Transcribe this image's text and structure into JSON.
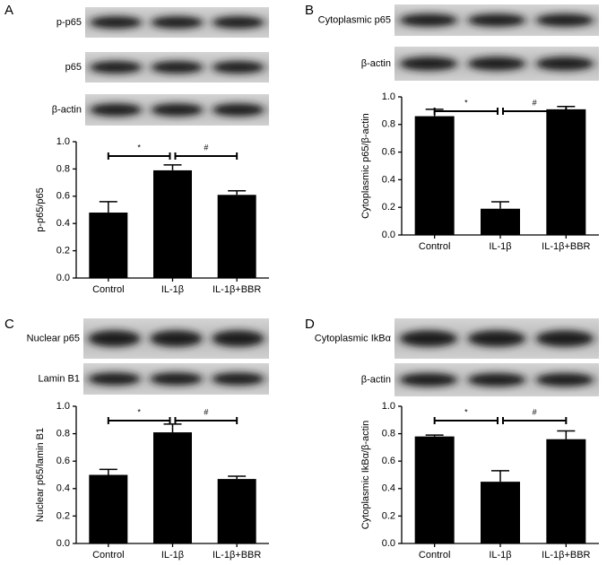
{
  "chart_data": [
    {
      "type": "bar",
      "panel": "A",
      "blot_labels": [
        "p-p65",
        "p65",
        "β-actin"
      ],
      "ylabel": "p-p65/p65",
      "categories": [
        "Control",
        "IL-1β",
        "IL-1β+BBR"
      ],
      "values": [
        0.48,
        0.79,
        0.61
      ],
      "errors": [
        0.08,
        0.04,
        0.03
      ],
      "color": "#000000",
      "ylim": [
        0,
        1
      ],
      "yticks": [
        {
          "value": 0,
          "label": "0.0"
        },
        {
          "value": 0.2,
          "label": "0.2"
        },
        {
          "value": 0.4,
          "label": "0.4"
        },
        {
          "value": 0.6,
          "label": "0.6"
        },
        {
          "value": 0.8,
          "label": "0.8"
        },
        {
          "value": 1,
          "label": "1.0"
        }
      ],
      "annotations": [
        "*",
        "#"
      ]
    },
    {
      "type": "bar",
      "panel": "B",
      "blot_labels": [
        "Cytoplasmic p65",
        "β-actin"
      ],
      "ylabel": "Cytoplasmic p65/β-actin",
      "categories": [
        "Control",
        "IL-1β",
        "IL-1β+BBR"
      ],
      "values": [
        0.86,
        0.19,
        0.91
      ],
      "errors": [
        0.05,
        0.05,
        0.02
      ],
      "color": "#000000",
      "ylim": [
        0,
        1
      ],
      "yticks": [
        {
          "value": 0,
          "label": "0.0"
        },
        {
          "value": 0.2,
          "label": "0.2"
        },
        {
          "value": 0.4,
          "label": "0.4"
        },
        {
          "value": 0.6,
          "label": "0.6"
        },
        {
          "value": 0.8,
          "label": "0.8"
        },
        {
          "value": 1,
          "label": "1.0"
        }
      ],
      "annotations": [
        "*",
        "#"
      ]
    },
    {
      "type": "bar",
      "panel": "C",
      "blot_labels": [
        "Nuclear p65",
        "Lamin B1"
      ],
      "ylabel": "Nuclear p65/lamin B1",
      "categories": [
        "Control",
        "IL-1β",
        "IL-1β+BBR"
      ],
      "values": [
        0.5,
        0.81,
        0.47
      ],
      "errors": [
        0.04,
        0.06,
        0.02
      ],
      "color": "#000000",
      "ylim": [
        0,
        1
      ],
      "yticks": [
        {
          "value": 0,
          "label": "0.0"
        },
        {
          "value": 0.2,
          "label": "0.2"
        },
        {
          "value": 0.4,
          "label": "0.4"
        },
        {
          "value": 0.6,
          "label": "0.6"
        },
        {
          "value": 0.8,
          "label": "0.8"
        },
        {
          "value": 1,
          "label": "1.0"
        }
      ],
      "annotations": [
        "*",
        "#"
      ]
    },
    {
      "type": "bar",
      "panel": "D",
      "blot_labels": [
        "Cytoplasmic IkBα",
        "β-actin"
      ],
      "ylabel": "Cytoplasmic IkBα/β-actin",
      "categories": [
        "Control",
        "IL-1β",
        "IL-1β+BBR"
      ],
      "values": [
        0.78,
        0.45,
        0.76
      ],
      "errors": [
        0.01,
        0.08,
        0.06
      ],
      "color": "#000000",
      "ylim": [
        0,
        1
      ],
      "yticks": [
        {
          "value": 0,
          "label": "0.0"
        },
        {
          "value": 0.2,
          "label": "0.2"
        },
        {
          "value": 0.4,
          "label": "0.4"
        },
        {
          "value": 0.6,
          "label": "0.6"
        },
        {
          "value": 0.8,
          "label": "0.8"
        },
        {
          "value": 1,
          "label": "1.0"
        }
      ],
      "annotations": [
        "*",
        "#"
      ]
    }
  ]
}
